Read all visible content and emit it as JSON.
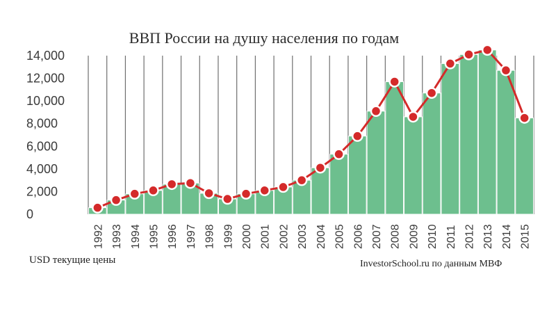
{
  "title": "ВВП России на душу населения по годам",
  "units_note": "USD текущие цены",
  "source_note": "InvestorSchool.ru по данным МВФ",
  "colors": {
    "bar": "#6dbf8e",
    "bar_edge": "#ffffff",
    "line": "#d42a2a",
    "marker_fill": "#d42a2a",
    "marker_stroke": "#ffffff",
    "grid": "#6f6f6f"
  },
  "chart_data": {
    "type": "bar",
    "overlay": "line",
    "categories": [
      "1992",
      "1993",
      "1994",
      "1995",
      "1996",
      "1997",
      "1998",
      "1999",
      "2000",
      "2001",
      "2002",
      "2003",
      "2004",
      "2005",
      "2006",
      "2007",
      "2008",
      "2009",
      "2010",
      "2011",
      "2012",
      "2013",
      "2014",
      "2015"
    ],
    "values": [
      575,
      1250,
      1800,
      2100,
      2650,
      2750,
      1850,
      1350,
      1800,
      2100,
      2400,
      3000,
      4100,
      5300,
      6900,
      9100,
      11700,
      8600,
      10700,
      13300,
      14100,
      14500,
      12700,
      8500
    ],
    "y_ticks": [
      "0",
      "2,000",
      "4,000",
      "6,000",
      "8,000",
      "10,000",
      "12,000",
      "14,000"
    ],
    "ylim": [
      0,
      14000
    ],
    "grid": "vertical"
  }
}
